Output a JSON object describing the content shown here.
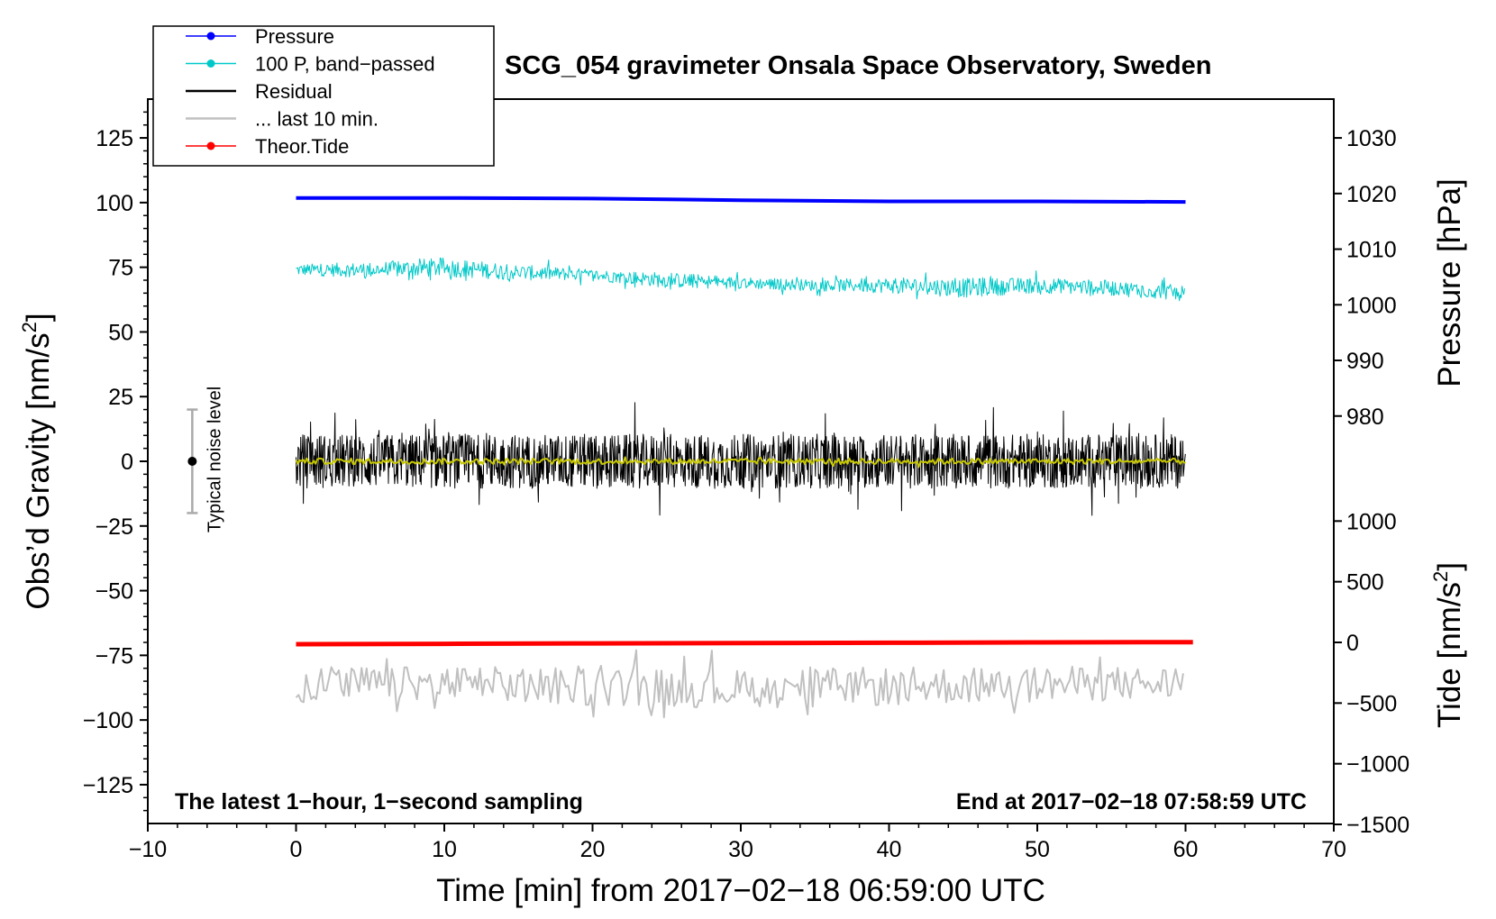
{
  "chart_data": {
    "type": "line",
    "title": "SCG_054 gravimeter Onsala Space Observatory, Sweden",
    "xlabel": "Time [min] from 2017−02−18 06:59:00 UTC",
    "ylabel": "Obs’d Gravity [nm/s",
    "ylabel_sup": "2",
    "ylabel_close": "]",
    "xlim": [
      -10,
      70
    ],
    "ylim": [
      -140,
      140
    ],
    "x_ticks": [
      -10,
      0,
      10,
      20,
      30,
      40,
      50,
      60,
      70
    ],
    "x_tick_labels": [
      "−10",
      "0",
      "10",
      "20",
      "30",
      "40",
      "50",
      "60",
      "70"
    ],
    "y_ticks": [
      125,
      100,
      75,
      50,
      25,
      0,
      -25,
      -50,
      -75,
      -100,
      -125
    ],
    "y_tick_labels": [
      "125",
      "100",
      "75",
      "50",
      "25",
      "0",
      "−25",
      "−50",
      "−75",
      "−100",
      "−125"
    ],
    "right_axis_pressure": {
      "label": "Pressure [hPa]",
      "ticks": [
        1030,
        1020,
        1010,
        1000,
        990,
        980
      ],
      "tick_labels": [
        "1030",
        "1020",
        "1010",
        "1000",
        "990",
        "980"
      ],
      "gravity_equivalent": [
        125,
        103.5,
        82,
        60.5,
        39,
        17.5
      ]
    },
    "right_axis_tide": {
      "label": "Tide [nm/s",
      "label_sup": "2",
      "label_close": "]",
      "ticks": [
        1000,
        500,
        0,
        -500,
        -1000,
        -1500
      ],
      "tick_labels": [
        "1000",
        "500",
        "0",
        "−500",
        "−1000",
        "−1500"
      ],
      "gravity_per_unit": 0.0469,
      "gravity_offset": -70
    },
    "series": [
      {
        "name": "Pressure",
        "color": "#0000ff",
        "kind": "line",
        "x": [
          0,
          10,
          20,
          30,
          40,
          50,
          60
        ],
        "y_hpa": [
          1019.2,
          1019.2,
          1019.1,
          1018.8,
          1018.6,
          1018.6,
          1018.5
        ]
      },
      {
        "name": "100 P, band−passed",
        "color": "#00c8c8",
        "kind": "noisy",
        "x": [
          0,
          5,
          10,
          15,
          20,
          25,
          30,
          35,
          40,
          45,
          50,
          55,
          60
        ],
        "center": [
          74,
          74,
          75,
          73,
          72,
          70,
          69,
          68,
          68,
          67,
          68,
          67,
          65
        ],
        "amplitude": [
          3,
          4,
          5,
          4,
          3,
          4,
          3,
          3,
          4,
          5,
          4,
          4,
          4
        ]
      },
      {
        "name": "Residual",
        "color": "#000000",
        "kind": "noisy",
        "x": [
          0,
          10,
          20,
          30,
          40,
          50,
          60
        ],
        "center": [
          0,
          0,
          0,
          0,
          0,
          0,
          0
        ],
        "amplitude": [
          14,
          14,
          14,
          14,
          14,
          14,
          14
        ]
      },
      {
        "name": "... last 10 min.",
        "color": "#c0c0c0",
        "kind": "noisy",
        "x": [
          0,
          10,
          20,
          30,
          40,
          50,
          60
        ],
        "center": [
          -86,
          -86,
          -87,
          -88,
          -87,
          -86,
          -86
        ],
        "amplitude": [
          9,
          9,
          10,
          10,
          10,
          9,
          9
        ]
      },
      {
        "name": "Theor.Tide",
        "color": "#ff0000",
        "kind": "line",
        "x": [
          0,
          10,
          20,
          30,
          40,
          50,
          60.5
        ],
        "y_tide": [
          -15,
          -12,
          -8,
          -5,
          -3,
          0,
          2
        ]
      },
      {
        "name": "Residual smoothed",
        "color": "#c8c800",
        "kind": "noisy",
        "x": [
          0,
          60
        ],
        "center": [
          0,
          0
        ],
        "amplitude": [
          1.5,
          1.5
        ]
      }
    ],
    "legend": {
      "position": "top-left",
      "entries": [
        {
          "label": "Pressure",
          "color": "#0000ff",
          "marker": true
        },
        {
          "label": "100 P, band−passed",
          "color": "#00c8c8",
          "marker": true
        },
        {
          "label": "Residual",
          "color": "#000000",
          "marker": false
        },
        {
          "label": "... last 10 min.",
          "color": "#c0c0c0",
          "marker": false
        },
        {
          "label": "Theor.Tide",
          "color": "#ff0000",
          "marker": true
        }
      ]
    },
    "noise_level": {
      "label": "Typical noise level",
      "x": -7,
      "y": 0,
      "half_range": 20
    },
    "annotations": {
      "bottom_left": "The latest 1−hour, 1−second sampling",
      "bottom_right": "End at 2017−02−18 07:58:59 UTC"
    }
  }
}
